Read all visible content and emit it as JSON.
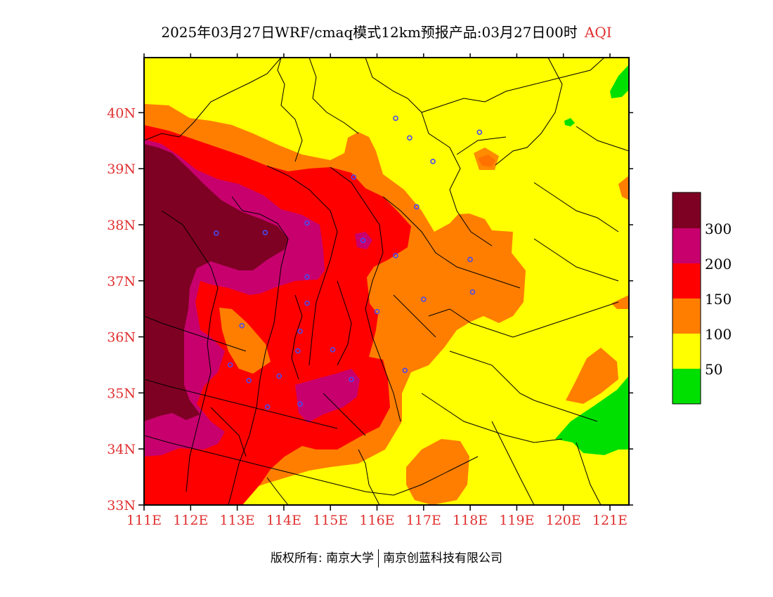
{
  "title": {
    "main": "2025年03月27日WRF/cmaq模式12km预报产品:03月27日00时",
    "variable": "AQI"
  },
  "colors": {
    "green": "#00e000",
    "yellow": "#ffff00",
    "orange": "#ff7e00",
    "red": "#ff0000",
    "purple": "#c8006e",
    "maroon": "#7e0023",
    "station": "#4a4af0",
    "axis_label": "#e03030"
  },
  "axes": {
    "lat_ticks": [
      {
        "value": 40,
        "label": "40N"
      },
      {
        "value": 39,
        "label": "39N"
      },
      {
        "value": 38,
        "label": "38N"
      },
      {
        "value": 37,
        "label": "37N"
      },
      {
        "value": 36,
        "label": "36N"
      },
      {
        "value": 35,
        "label": "35N"
      },
      {
        "value": 34,
        "label": "34N"
      },
      {
        "value": 33,
        "label": "33N"
      }
    ],
    "lon_ticks": [
      {
        "value": 111,
        "label": "111E"
      },
      {
        "value": 112,
        "label": "112E"
      },
      {
        "value": 113,
        "label": "113E"
      },
      {
        "value": 114,
        "label": "114E"
      },
      {
        "value": 115,
        "label": "115E"
      },
      {
        "value": 116,
        "label": "116E"
      },
      {
        "value": 117,
        "label": "117E"
      },
      {
        "value": 118,
        "label": "118E"
      },
      {
        "value": 119,
        "label": "119E"
      },
      {
        "value": 120,
        "label": "120E"
      },
      {
        "value": 121,
        "label": "121E"
      }
    ]
  },
  "legend": {
    "labels": [
      "300",
      "200",
      "150",
      "100",
      "50"
    ],
    "color_order_top_to_bottom": [
      "maroon",
      "purple",
      "red",
      "orange",
      "yellow",
      "green"
    ]
  },
  "stations": [
    [
      116.4,
      39.9
    ],
    [
      116.7,
      39.55
    ],
    [
      118.2,
      39.65
    ],
    [
      117.2,
      39.13
    ],
    [
      115.5,
      38.85
    ],
    [
      116.85,
      38.32
    ],
    [
      114.5,
      38.03
    ],
    [
      112.55,
      37.85
    ],
    [
      113.6,
      37.86
    ],
    [
      115.7,
      37.72
    ],
    [
      116.4,
      37.45
    ],
    [
      118.0,
      37.38
    ],
    [
      114.5,
      37.07
    ],
    [
      114.5,
      36.6
    ],
    [
      117.0,
      36.67
    ],
    [
      118.05,
      36.8
    ],
    [
      116.0,
      36.45
    ],
    [
      113.1,
      36.2
    ],
    [
      114.35,
      36.1
    ],
    [
      114.3,
      35.75
    ],
    [
      115.05,
      35.77
    ],
    [
      112.85,
      35.5
    ],
    [
      113.9,
      35.3
    ],
    [
      113.25,
      35.22
    ],
    [
      115.45,
      35.24
    ],
    [
      116.6,
      35.4
    ],
    [
      114.35,
      34.8
    ],
    [
      113.65,
      34.75
    ]
  ],
  "copyright": {
    "prefix": "版权所有:",
    "org1": "南京大学",
    "org2": "南京创蓝科技有限公司"
  }
}
